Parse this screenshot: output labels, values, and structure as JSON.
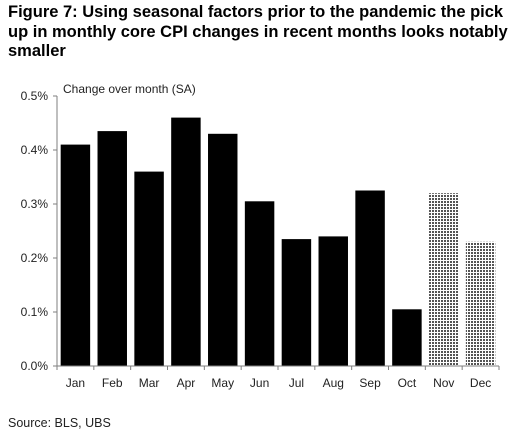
{
  "title": "Figure 7: Using seasonal factors prior to the pandemic the pick up in monthly core CPI changes in recent months looks notably smaller",
  "source": "Source: BLS, UBS",
  "chart_data": {
    "type": "bar",
    "title": "Figure 7: Using seasonal factors prior to the pandemic the pick up in monthly core CPI changes in recent months looks notably smaller",
    "ylabel": "Change over month (SA)",
    "xlabel": "",
    "categories": [
      "Jan",
      "Feb",
      "Mar",
      "Apr",
      "May",
      "Jun",
      "Jul",
      "Aug",
      "Sep",
      "Oct",
      "Nov",
      "Dec"
    ],
    "values": [
      0.41,
      0.435,
      0.36,
      0.46,
      0.43,
      0.305,
      0.235,
      0.24,
      0.325,
      0.105,
      0.32,
      0.23
    ],
    "bar_styles": [
      "solid",
      "solid",
      "solid",
      "solid",
      "solid",
      "solid",
      "solid",
      "solid",
      "solid",
      "solid",
      "hatched",
      "hatched"
    ],
    "ylim": [
      0,
      0.5
    ],
    "yticks": [
      0,
      0.1,
      0.2,
      0.3,
      0.4,
      0.5
    ],
    "ytick_labels": [
      "0.0%",
      "0.1%",
      "0.2%",
      "0.3%",
      "0.4%",
      "0.5%"
    ],
    "grid": false,
    "legend": "none",
    "colors": {
      "solid": "#000000",
      "hatched": "#b4b4b4",
      "axis": "#7f7f7f"
    }
  }
}
